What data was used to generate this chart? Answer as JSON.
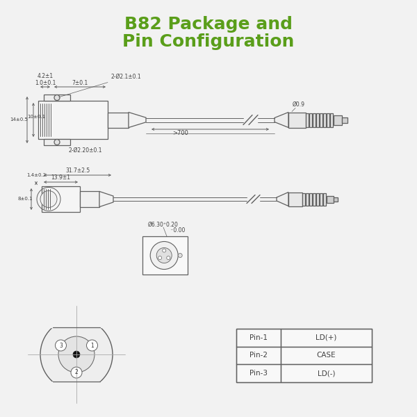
{
  "title_line1": "B82 Package and",
  "title_line2": "Pin Configuration",
  "title_color": "#5a9e1a",
  "title_fontsize": 18,
  "bg_color": "#f2f2f2",
  "drawing_color": "#606060",
  "pin_table": [
    [
      "Pin-1",
      "LD(+)"
    ],
    [
      "Pin-2",
      "CASE"
    ],
    [
      "Pin-3",
      "LD(-)"
    ]
  ]
}
